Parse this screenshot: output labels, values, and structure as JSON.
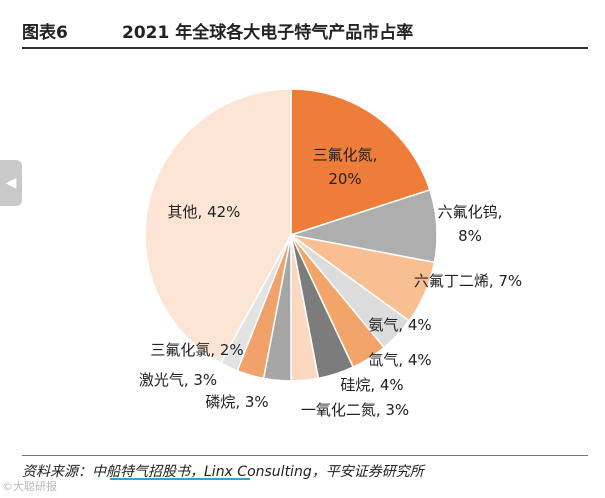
{
  "header": {
    "figure_label": "图表6",
    "title": "2021 年全球各大电子特气产品市占率"
  },
  "chart_data": {
    "type": "pie",
    "title": "2021 年全球各大电子特气产品市占率",
    "slices": [
      {
        "name": "三氟化氮",
        "value": 20,
        "label": "三氟化氮, 20%",
        "color": "#ee7d3a"
      },
      {
        "name": "六氟化钨",
        "value": 8,
        "label": "六氟化钨, 8%",
        "color": "#aeaeae"
      },
      {
        "name": "六氟丁二烯",
        "value": 7,
        "label": "六氟丁二烯, 7%",
        "color": "#f8bf92"
      },
      {
        "name": "氨气",
        "value": 4,
        "label": "氨气, 4%",
        "color": "#dcdcdc"
      },
      {
        "name": "氙气",
        "value": 4,
        "label": "氙气, 4%",
        "color": "#f2a469"
      },
      {
        "name": "硅烷",
        "value": 4,
        "label": "硅烷, 4%",
        "color": "#7c7c7c"
      },
      {
        "name": "一氧化二氮",
        "value": 3,
        "label": "一氧化二氮, 3%",
        "color": "#fbd9c1"
      },
      {
        "name": "磷烷",
        "value": 3,
        "label": "磷烷, 3%",
        "color": "#a6a6a6"
      },
      {
        "name": "激光气",
        "value": 3,
        "label": "激光气, 3%",
        "color": "#f0a26a"
      },
      {
        "name": "三氟化氯",
        "value": 2,
        "label": "三氟化氯, 2%",
        "color": "#e3e3e3"
      },
      {
        "name": "其他",
        "value": 42,
        "label": "其他, 42%",
        "color": "#fde5d5"
      }
    ]
  },
  "source": "资料来源：中船特气招股书，Linx Consulting，平安证券研究所",
  "nav": {
    "icon": "chevron-left-icon",
    "glyph": "◀"
  },
  "watermark": "©大聪研报"
}
